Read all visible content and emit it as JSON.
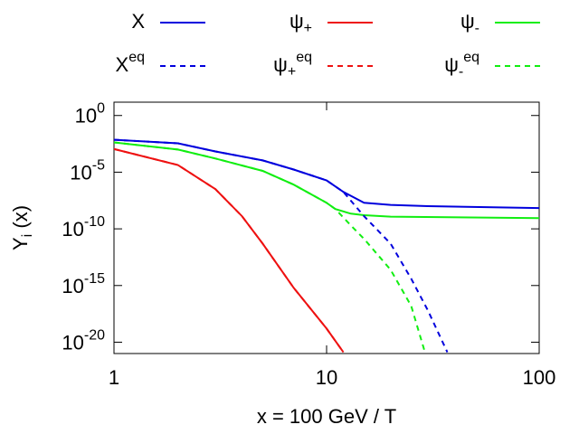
{
  "chart_data": {
    "type": "line",
    "xlabel": "x = 100 GeV / T",
    "ylabel": "Y_i (x)",
    "xscale": "log",
    "yscale": "log",
    "xlim": [
      1,
      100
    ],
    "ylim": [
      1e-21,
      15
    ],
    "xticks": [
      1,
      10,
      100
    ],
    "yticks": [
      {
        "value": 1,
        "label": "10^0"
      },
      {
        "value": 1e-05,
        "label": "10^-5"
      },
      {
        "value": 1e-10,
        "label": "10^-10"
      },
      {
        "value": 1e-15,
        "label": "10^-15"
      },
      {
        "value": 1e-20,
        "label": "10^-20"
      }
    ],
    "legend": "top",
    "series": [
      {
        "name": "X",
        "color": "#0000dd",
        "style": "solid",
        "x": [
          1,
          2,
          3,
          5,
          7,
          10,
          12,
          15,
          20,
          30,
          100
        ],
        "values": [
          0.0072,
          0.0035,
          0.00068,
          0.00011,
          1.7e-05,
          1.9e-06,
          1.8e-07,
          2e-08,
          1.3e-08,
          1e-08,
          6.8e-09
        ]
      },
      {
        "name": "ψ_+",
        "color": "#ee1111",
        "style": "solid",
        "x": [
          1,
          2,
          3,
          4,
          5,
          7,
          10,
          12
        ],
        "values": [
          0.0011,
          4.3e-05,
          3.2e-07,
          1.3e-09,
          5e-12,
          6.3e-16,
          1.6e-19,
          1.3e-21
        ]
      },
      {
        "name": "ψ_-",
        "color": "#11ee11",
        "style": "solid",
        "x": [
          1,
          2,
          3,
          5,
          7,
          10,
          11,
          13,
          15,
          20,
          100
        ],
        "values": [
          0.0042,
          0.001,
          0.00016,
          1.3e-05,
          8e-07,
          2e-08,
          5.6e-09,
          2.2e-09,
          1.6e-09,
          1.2e-09,
          8.9e-10
        ]
      },
      {
        "name": "X^eq",
        "color": "#0000dd",
        "style": "dashed",
        "x": [
          1,
          2,
          3,
          5,
          7,
          10,
          12,
          15,
          20,
          25,
          30,
          37
        ],
        "values": [
          0.0072,
          0.0035,
          0.00068,
          0.00011,
          1.7e-05,
          1.9e-06,
          1.8e-07,
          1.3e-09,
          5e-12,
          4e-15,
          6e-18,
          1.3e-21
        ]
      },
      {
        "name": "ψ_+^eq",
        "color": "#ee1111",
        "style": "dashed",
        "x": [
          1,
          2,
          3,
          4,
          5,
          7,
          10,
          12
        ],
        "values": [
          0.0011,
          4.3e-05,
          3.2e-07,
          1.3e-09,
          5e-12,
          6.3e-16,
          1.6e-19,
          1.3e-21
        ]
      },
      {
        "name": "ψ_-^eq",
        "color": "#11ee11",
        "style": "dashed",
        "x": [
          1,
          2,
          3,
          5,
          7,
          10,
          11,
          13,
          15,
          20,
          25,
          29
        ],
        "values": [
          0.0042,
          0.001,
          0.00016,
          1.3e-05,
          8e-07,
          2e-08,
          5.6e-09,
          2e-10,
          1.3e-11,
          2.5e-14,
          1.6e-17,
          1.3e-21
        ]
      }
    ]
  }
}
